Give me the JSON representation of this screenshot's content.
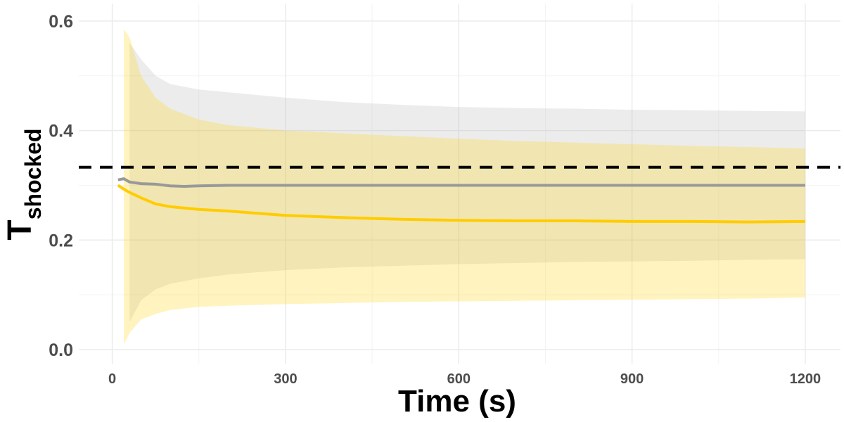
{
  "chart_data": {
    "type": "ribbon-line",
    "xlabel": "Time (s)",
    "ylabel": "T",
    "ylabel_subscript": "shocked",
    "xlim": [
      -58,
      1261
    ],
    "ylim": [
      -0.027,
      0.632
    ],
    "xticks": [
      0,
      300,
      600,
      900,
      1200
    ],
    "yticks": [
      {
        "value": 0,
        "label": "0.0"
      },
      0.2,
      0.4,
      0.6
    ],
    "xminorticks": [
      150,
      450,
      750,
      1050
    ],
    "yminorticks": [
      0.1,
      0.3,
      0.5
    ],
    "grid": true,
    "hline": 0.333,
    "hline_color": "#000000",
    "ribbons": [
      {
        "color": "#b3b3b3",
        "x": [
          30,
          50,
          75,
          100,
          150,
          200,
          300,
          400,
          500,
          600,
          700,
          800,
          900,
          1000,
          1100,
          1200
        ],
        "upper": [
          0.56,
          0.53,
          0.5,
          0.485,
          0.475,
          0.47,
          0.46,
          0.452,
          0.447,
          0.443,
          0.441,
          0.44,
          0.438,
          0.437,
          0.436,
          0.435
        ],
        "lower": [
          0.05,
          0.09,
          0.11,
          0.12,
          0.13,
          0.137,
          0.145,
          0.15,
          0.153,
          0.156,
          0.158,
          0.16,
          0.161,
          0.162,
          0.164,
          0.165
        ]
      },
      {
        "color": "#ffd200",
        "x": [
          20,
          30,
          50,
          75,
          100,
          150,
          200,
          300,
          400,
          500,
          600,
          700,
          800,
          900,
          1000,
          1100,
          1200
        ],
        "upper": [
          0.585,
          0.57,
          0.5,
          0.46,
          0.44,
          0.42,
          0.41,
          0.4,
          0.395,
          0.39,
          0.385,
          0.381,
          0.378,
          0.375,
          0.372,
          0.37,
          0.367
        ],
        "lower": [
          0.01,
          0.03,
          0.055,
          0.065,
          0.072,
          0.078,
          0.08,
          0.083,
          0.085,
          0.087,
          0.088,
          0.089,
          0.09,
          0.091,
          0.092,
          0.093,
          0.095
        ]
      }
    ],
    "series": [
      {
        "color": "#999999",
        "x": [
          10,
          20,
          30,
          50,
          75,
          100,
          125,
          150,
          200,
          300,
          400,
          500,
          600,
          700,
          800,
          900,
          1000,
          1100,
          1200
        ],
        "values": [
          0.31,
          0.312,
          0.306,
          0.303,
          0.302,
          0.299,
          0.298,
          0.299,
          0.3,
          0.3,
          0.3,
          0.3,
          0.3,
          0.3,
          0.3,
          0.3,
          0.3,
          0.3,
          0.3
        ]
      },
      {
        "color": "#ffcc00",
        "x": [
          10,
          20,
          30,
          50,
          75,
          100,
          150,
          200,
          300,
          400,
          500,
          600,
          700,
          800,
          900,
          1000,
          1100,
          1200
        ],
        "values": [
          0.3,
          0.293,
          0.287,
          0.277,
          0.266,
          0.261,
          0.256,
          0.253,
          0.245,
          0.241,
          0.238,
          0.236,
          0.235,
          0.235,
          0.234,
          0.234,
          0.233,
          0.234
        ]
      }
    ]
  }
}
